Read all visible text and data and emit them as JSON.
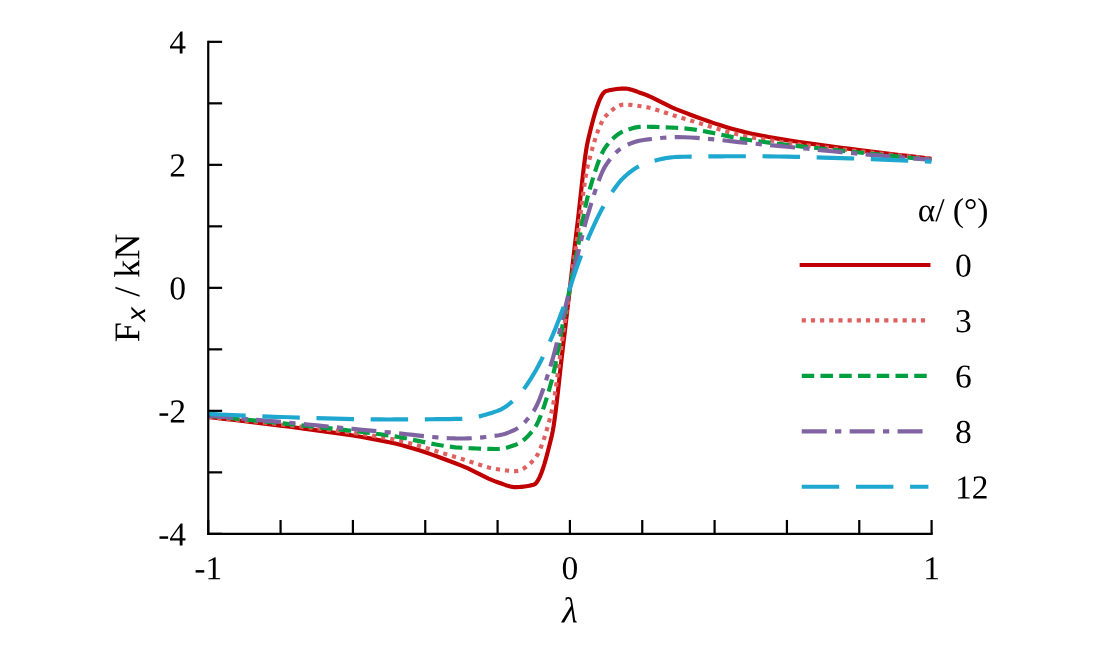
{
  "chart_data": {
    "type": "line",
    "xlabel": "λ",
    "ylabel": "F$_{x}$ / kN",
    "legend_title": "α/ (°)",
    "legend": "right",
    "grid": false,
    "marker": "none",
    "x": [
      -1,
      -0.8,
      -0.5,
      -0.3,
      -0.2,
      -0.15,
      -0.1,
      -0.05,
      -0.02,
      0,
      0.02,
      0.05,
      0.1,
      0.15,
      0.2,
      0.3,
      0.5,
      0.8,
      1
    ],
    "xlim": [
      -1,
      1
    ],
    "xticks": [
      -1,
      {
        "value": -0.8,
        "label": null
      },
      {
        "value": -0.6,
        "label": null
      },
      {
        "value": -0.4,
        "label": null
      },
      {
        "value": -0.2,
        "label": null
      },
      0,
      {
        "value": 0.2,
        "label": null
      },
      {
        "value": 0.4,
        "label": null
      },
      {
        "value": 0.6,
        "label": null
      },
      {
        "value": 0.8,
        "label": null
      },
      1
    ],
    "ylim": [
      -4,
      4
    ],
    "yticks": [
      -4,
      {
        "value": -3,
        "label": null
      },
      -2,
      {
        "value": -1,
        "label": null
      },
      0,
      {
        "value": 1,
        "label": null
      },
      2,
      {
        "value": 3,
        "label": null
      },
      4
    ],
    "series": [
      {
        "name": "0",
        "color": "#c00000",
        "line_style": "solid",
        "values": [
          -2.1,
          -2.24,
          -2.51,
          -2.89,
          -3.16,
          -3.24,
          -3.2,
          -2.4,
          -1.0,
          0,
          1.0,
          2.4,
          3.2,
          3.24,
          3.16,
          2.89,
          2.51,
          2.24,
          2.1
        ]
      },
      {
        "name": "3",
        "color": "#e06060",
        "line_style": "dotted",
        "values": [
          -2.1,
          -2.22,
          -2.45,
          -2.78,
          -2.95,
          -2.98,
          -2.8,
          -2.0,
          -0.8,
          0,
          0.8,
          2.0,
          2.8,
          2.98,
          2.95,
          2.78,
          2.45,
          2.22,
          2.1
        ]
      },
      {
        "name": "6",
        "color": "#00a040",
        "line_style": "dashed",
        "values": [
          -2.08,
          -2.2,
          -2.4,
          -2.6,
          -2.62,
          -2.55,
          -2.3,
          -1.5,
          -0.6,
          0,
          0.6,
          1.5,
          2.3,
          2.55,
          2.62,
          2.6,
          2.4,
          2.2,
          2.08
        ]
      },
      {
        "name": "8",
        "color": "#8064a2",
        "line_style": "dashdot",
        "values": [
          -2.08,
          -2.18,
          -2.35,
          -2.45,
          -2.4,
          -2.3,
          -2.0,
          -1.2,
          -0.5,
          0,
          0.5,
          1.2,
          2.0,
          2.3,
          2.4,
          2.45,
          2.35,
          2.18,
          2.08
        ]
      },
      {
        "name": "12",
        "color": "#1ea8d0",
        "line_style": "longdash",
        "values": [
          -2.05,
          -2.1,
          -2.14,
          -2.13,
          -2.0,
          -1.8,
          -1.4,
          -0.8,
          -0.35,
          0,
          0.35,
          0.8,
          1.4,
          1.8,
          2.0,
          2.13,
          2.14,
          2.1,
          2.05
        ]
      }
    ]
  }
}
